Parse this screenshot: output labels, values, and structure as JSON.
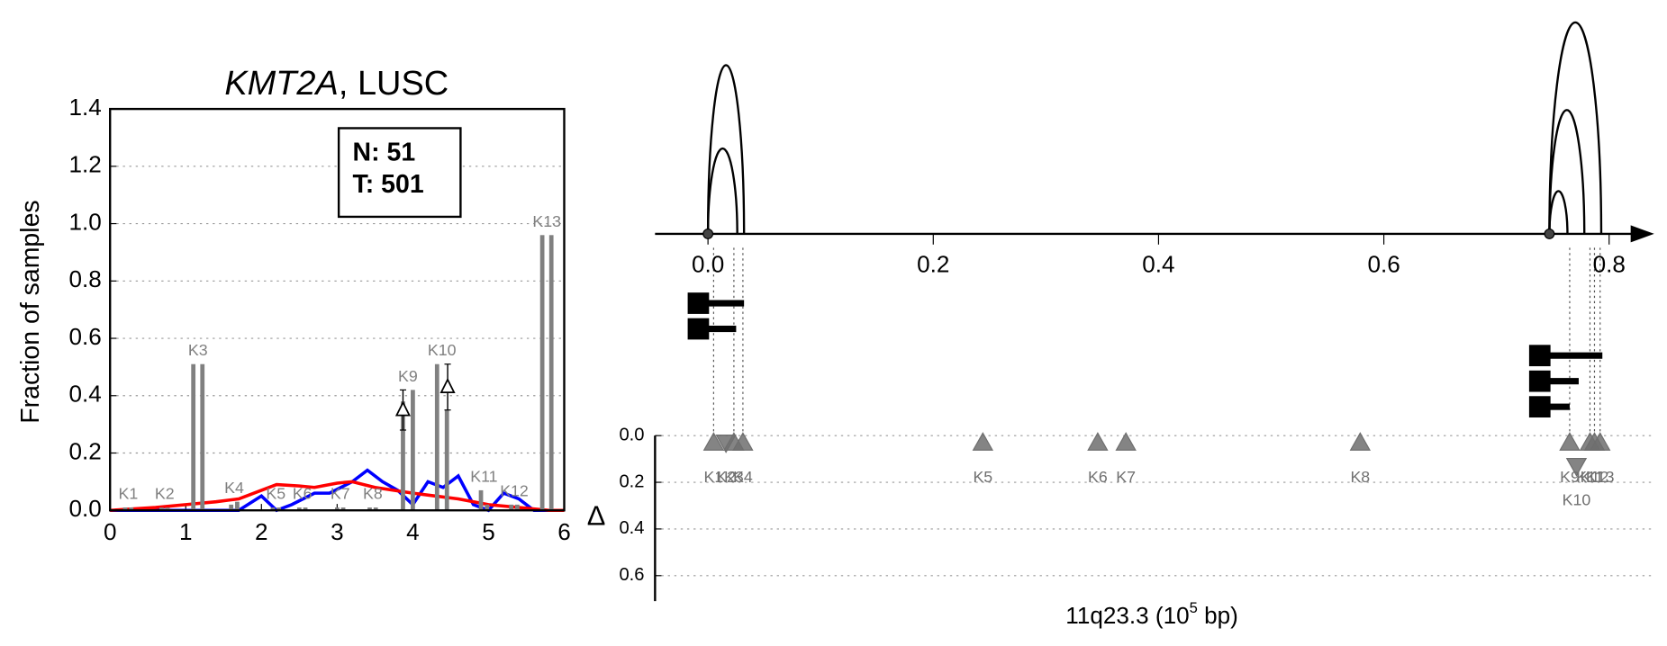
{
  "chart_data": [
    {
      "type": "bar",
      "title": {
        "gene": "KMT2A",
        "suffix": ", LUSC"
      },
      "ylabel": "Fraction of samples",
      "annotation": [
        "N: 51",
        "T: 501"
      ],
      "xlim": [
        0,
        6
      ],
      "xticks": [
        0,
        1,
        2,
        3,
        4,
        5,
        6
      ],
      "ylim": [
        0,
        1.4
      ],
      "yticks": [
        {
          "value": 0,
          "label": "0.0"
        },
        0.2,
        0.4,
        0.6,
        0.8,
        {
          "value": 1,
          "label": "1.0"
        },
        1.2,
        1.4
      ],
      "grid": true,
      "bar_color": "#808080",
      "peaks": [
        {
          "label": "K1",
          "x": [
            0.2,
            0.28
          ],
          "values": [
            0.01,
            0.01
          ]
        },
        {
          "label": "K2",
          "x": [
            0.68,
            0.76
          ],
          "values": [
            0.01,
            0.01
          ]
        },
        {
          "label": "K3",
          "x": [
            1.1,
            1.22
          ],
          "values": [
            0.51,
            0.51
          ]
        },
        {
          "label": "K4",
          "x": [
            1.6,
            1.68
          ],
          "values": [
            0.02,
            0.03
          ]
        },
        {
          "label": "K5",
          "x": [
            2.15,
            2.23
          ],
          "values": [
            0.01,
            0.01
          ]
        },
        {
          "label": "K6",
          "x": [
            2.5,
            2.58
          ],
          "values": [
            0.01,
            0.01
          ]
        },
        {
          "label": "K7",
          "x": [
            3.0,
            3.08
          ],
          "values": [
            0.01,
            0.01
          ]
        },
        {
          "label": "K8",
          "x": [
            3.43,
            3.51
          ],
          "values": [
            0.01,
            0.01
          ]
        },
        {
          "label": "K9",
          "x": [
            3.87,
            4.0
          ],
          "values": [
            0.38,
            0.42
          ]
        },
        {
          "label": "K10",
          "x": [
            4.32,
            4.45
          ],
          "values": [
            0.51,
            0.35
          ]
        },
        {
          "label": "K11",
          "x": [
            4.9,
            4.98
          ],
          "values": [
            0.07,
            0.02
          ]
        },
        {
          "label": "K12",
          "x": [
            5.3,
            5.38
          ],
          "values": [
            0.02,
            0.02
          ]
        },
        {
          "label": "K13",
          "x": [
            5.71,
            5.83
          ],
          "values": [
            0.96,
            0.96
          ]
        }
      ],
      "errorbars": [
        {
          "x": 3.87,
          "value": 0.35,
          "err": 0.07
        },
        {
          "x": 4.46,
          "value": 0.43,
          "err": 0.08
        }
      ],
      "series": [
        {
          "color": "#0000ff",
          "x": [
            0,
            1.7,
            2.0,
            2.2,
            2.4,
            2.7,
            2.9,
            3.2,
            3.4,
            3.6,
            3.8,
            4.0,
            4.2,
            4.4,
            4.6,
            4.8,
            5.0,
            5.2,
            5.4,
            5.6,
            6.0
          ],
          "values": [
            0,
            0,
            0.05,
            0.0,
            0.02,
            0.06,
            0.06,
            0.1,
            0.14,
            0.1,
            0.07,
            0.02,
            0.1,
            0.08,
            0.12,
            0.02,
            0.0,
            0.06,
            0.04,
            0.0,
            0
          ]
        },
        {
          "color": "#ff0000",
          "x": [
            0,
            0.6,
            1.0,
            1.4,
            1.7,
            2.0,
            2.2,
            2.5,
            2.7,
            3.0,
            3.2,
            3.5,
            4.0,
            4.3,
            4.6,
            5.0,
            5.4,
            5.8,
            6.0
          ],
          "values": [
            0,
            0.01,
            0.02,
            0.03,
            0.04,
            0.07,
            0.09,
            0.085,
            0.08,
            0.095,
            0.1,
            0.08,
            0.06,
            0.05,
            0.04,
            0.02,
            0.01,
            0,
            0
          ]
        }
      ]
    },
    {
      "type": "arc",
      "xlim": [
        -0.047,
        0.84
      ],
      "xticks": [
        {
          "value": 0,
          "label": "0.0"
        },
        0.2,
        0.4,
        0.6,
        0.8
      ],
      "arc_ylim": [
        0,
        1
      ],
      "arcs": [
        {
          "start": 0,
          "end": 0.032,
          "height": 0.79
        },
        {
          "start": 0,
          "end": 0.026,
          "height": 0.4
        },
        {
          "start": 0.747,
          "end": 0.763,
          "height": 0.2
        },
        {
          "start": 0.747,
          "end": 0.778,
          "height": 0.58
        },
        {
          "start": 0.747,
          "end": 0.793,
          "height": 0.99
        }
      ],
      "segments": [
        {
          "start": 0,
          "end": 0.032
        },
        {
          "start": 0,
          "end": 0.025
        },
        {
          "start": 0.747,
          "end": 0.794
        },
        {
          "start": 0.747,
          "end": 0.773
        },
        {
          "start": 0.747,
          "end": 0.765
        }
      ],
      "marker_color": "#6e6e6e",
      "markers": {
        "labels": [
          "K1",
          "K2",
          "K3",
          "K4",
          "K5",
          "K6",
          "K7",
          "K8",
          "K9",
          "K10",
          "K11",
          "K12",
          "K13"
        ],
        "x": [
          0.005,
          0.016,
          0.023,
          0.031,
          0.244,
          0.346,
          0.371,
          0.579,
          0.765,
          0.771,
          0.783,
          0.787,
          0.792
        ],
        "values": [
          0.03,
          0.03,
          0.03,
          0.03,
          0.03,
          0.03,
          0.03,
          0.03,
          0.03,
          0.13,
          0.03,
          0.03,
          0.03
        ],
        "direction": [
          "up",
          "down",
          "up",
          "up",
          "up",
          "up",
          "up",
          "up",
          "up",
          "down",
          "up",
          "up",
          "up"
        ]
      },
      "ylabel": "Δ",
      "ylim": [
        0,
        0.7
      ],
      "yticks": [
        {
          "value": 0,
          "label": "0.0"
        },
        0.2,
        0.4,
        0.6
      ],
      "grid": true,
      "xlabel": {
        "main": "11q23.3 (10",
        "exp": "5",
        "tail": " bp)"
      }
    }
  ]
}
